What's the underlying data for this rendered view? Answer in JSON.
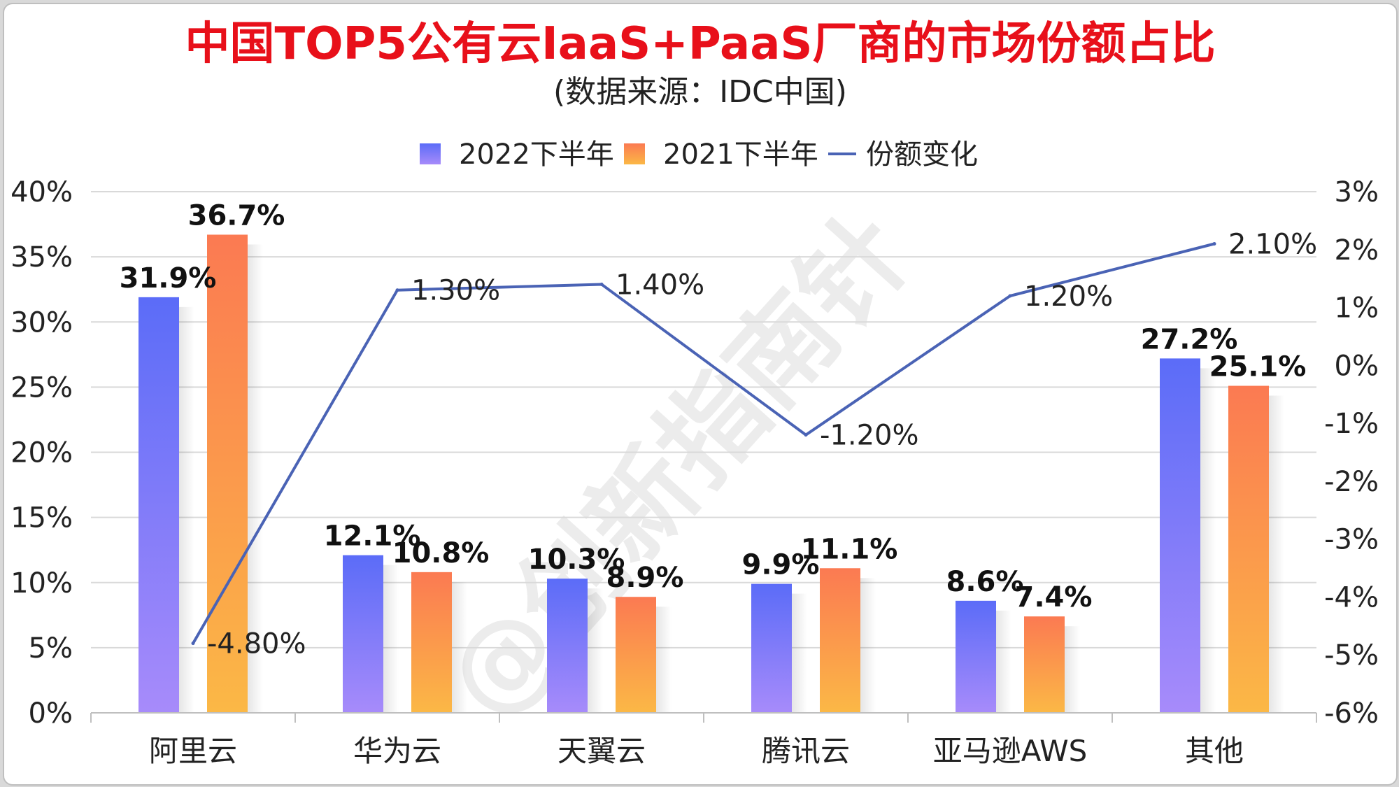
{
  "title": "中国TOP5公有云IaaS+PaaS厂商的市场份额占比",
  "subtitle": "(数据来源：IDC中国)",
  "legend": {
    "position": "top-center",
    "items": [
      "2022下半年",
      "2021下半年",
      "份额变化"
    ]
  },
  "colors": {
    "series1_top": "#5b6cf8",
    "series1_bottom": "#a78bfa",
    "series2_top": "#fb7a52",
    "series2_bottom": "#fbb846",
    "line": "#4a63b5",
    "title": "#e8101a",
    "watermark": "#ececec"
  },
  "watermark": "@创新指南针",
  "chart_data": {
    "type": "bar",
    "categories": [
      "阿里云",
      "华为云",
      "天翼云",
      "腾讯云",
      "亚马逊AWS",
      "其他"
    ],
    "series": [
      {
        "name": "2022下半年",
        "type": "bar",
        "axis": "left",
        "values": [
          31.9,
          12.1,
          10.3,
          9.9,
          8.6,
          27.2
        ],
        "labels": [
          "31.9%",
          "12.1%",
          "10.3%",
          "9.9%",
          "8.6%",
          "27.2%"
        ]
      },
      {
        "name": "2021下半年",
        "type": "bar",
        "axis": "left",
        "values": [
          36.7,
          10.8,
          8.9,
          11.1,
          7.4,
          25.1
        ],
        "labels": [
          "36.7%",
          "10.8%",
          "8.9%",
          "11.1%",
          "7.4%",
          "25.1%"
        ]
      },
      {
        "name": "份额变化",
        "type": "line",
        "axis": "right",
        "values": [
          -4.8,
          1.3,
          1.4,
          -1.2,
          1.2,
          2.1
        ],
        "labels": [
          "-4.80%",
          "1.30%",
          "1.40%",
          "-1.20%",
          "1.20%",
          "2.10%"
        ]
      }
    ],
    "left_axis": {
      "ylim": [
        0,
        40
      ],
      "ticks": [
        "0%",
        "5%",
        "10%",
        "15%",
        "20%",
        "25%",
        "30%",
        "35%",
        "40%"
      ]
    },
    "right_axis": {
      "ylim": [
        -6,
        3
      ],
      "ticks": [
        "-6%",
        "-5%",
        "-4%",
        "-3%",
        "-2%",
        "-1%",
        "0%",
        "1%",
        "2%",
        "3%"
      ]
    },
    "grid": true
  }
}
